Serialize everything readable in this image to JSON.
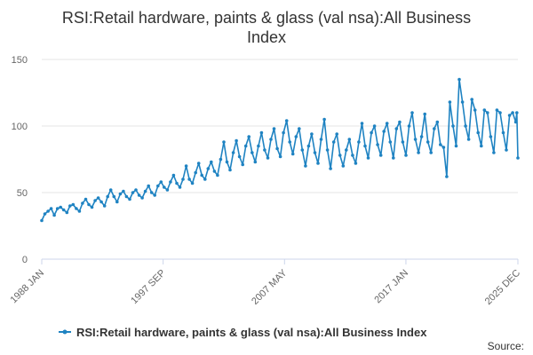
{
  "colors": {
    "series": "#1f83c2",
    "grid": "#e6e6e6",
    "text": "#333333",
    "tick_text": "#666666"
  },
  "chart_data": {
    "type": "line",
    "title": "RSI:Retail hardware, paints & glass (val nsa):All Business Index",
    "xlabel": "",
    "ylabel": "",
    "ylim": [
      0,
      150
    ],
    "yticks": [
      0,
      50,
      100,
      150
    ],
    "x_range": [
      "1988 JAN",
      "2025 DEC"
    ],
    "xtick_labels": [
      "1988 JAN",
      "1997 SEP",
      "2007 MAY",
      "2017 JAN",
      "2025 DEC"
    ],
    "grid": true,
    "legend_position": "bottom",
    "frequency": "monthly",
    "series": [
      {
        "name": "RSI:Retail hardware, paints & glass (val nsa):All Business Index",
        "points": [
          [
            "1988 JAN",
            29
          ],
          [
            "1988 APR",
            34
          ],
          [
            "1988 JUL",
            36
          ],
          [
            "1988 OCT",
            38
          ],
          [
            "1989 JAN",
            33
          ],
          [
            "1989 APR",
            38
          ],
          [
            "1989 JUL",
            39
          ],
          [
            "1989 OCT",
            37
          ],
          [
            "1990 JAN",
            35
          ],
          [
            "1990 APR",
            40
          ],
          [
            "1990 JUL",
            41
          ],
          [
            "1990 OCT",
            38
          ],
          [
            "1991 JAN",
            36
          ],
          [
            "1991 APR",
            42
          ],
          [
            "1991 JUL",
            45
          ],
          [
            "1991 OCT",
            41
          ],
          [
            "1992 JAN",
            39
          ],
          [
            "1992 APR",
            44
          ],
          [
            "1992 JUL",
            46
          ],
          [
            "1992 OCT",
            43
          ],
          [
            "1993 JAN",
            40
          ],
          [
            "1993 APR",
            47
          ],
          [
            "1993 JUL",
            52
          ],
          [
            "1993 OCT",
            47
          ],
          [
            "1994 JAN",
            43
          ],
          [
            "1994 APR",
            49
          ],
          [
            "1994 JUL",
            51
          ],
          [
            "1994 OCT",
            47
          ],
          [
            "1995 JAN",
            45
          ],
          [
            "1995 APR",
            50
          ],
          [
            "1995 JUL",
            52
          ],
          [
            "1995 OCT",
            48
          ],
          [
            "1996 JAN",
            46
          ],
          [
            "1996 APR",
            51
          ],
          [
            "1996 JUL",
            55
          ],
          [
            "1996 OCT",
            50
          ],
          [
            "1997 JAN",
            48
          ],
          [
            "1997 APR",
            55
          ],
          [
            "1997 JUL",
            58
          ],
          [
            "1997 OCT",
            54
          ],
          [
            "1998 JAN",
            52
          ],
          [
            "1998 APR",
            58
          ],
          [
            "1998 JUL",
            63
          ],
          [
            "1998 OCT",
            57
          ],
          [
            "1999 JAN",
            54
          ],
          [
            "1999 APR",
            60
          ],
          [
            "1999 JUL",
            70
          ],
          [
            "1999 OCT",
            60
          ],
          [
            "2000 JAN",
            57
          ],
          [
            "2000 APR",
            65
          ],
          [
            "2000 JUL",
            72
          ],
          [
            "2000 OCT",
            63
          ],
          [
            "2001 JAN",
            60
          ],
          [
            "2001 APR",
            68
          ],
          [
            "2001 JUL",
            73
          ],
          [
            "2001 OCT",
            66
          ],
          [
            "2002 JAN",
            63
          ],
          [
            "2002 APR",
            75
          ],
          [
            "2002 JUL",
            88
          ],
          [
            "2002 OCT",
            73
          ],
          [
            "2003 JAN",
            67
          ],
          [
            "2003 APR",
            80
          ],
          [
            "2003 JUL",
            89
          ],
          [
            "2003 OCT",
            77
          ],
          [
            "2004 JAN",
            71
          ],
          [
            "2004 APR",
            85
          ],
          [
            "2004 JUL",
            92
          ],
          [
            "2004 OCT",
            80
          ],
          [
            "2005 JAN",
            73
          ],
          [
            "2005 APR",
            85
          ],
          [
            "2005 JUL",
            95
          ],
          [
            "2005 OCT",
            82
          ],
          [
            "2006 JAN",
            76
          ],
          [
            "2006 APR",
            90
          ],
          [
            "2006 JUL",
            98
          ],
          [
            "2006 OCT",
            83
          ],
          [
            "2007 JAN",
            77
          ],
          [
            "2007 APR",
            95
          ],
          [
            "2007 JUL",
            104
          ],
          [
            "2007 OCT",
            88
          ],
          [
            "2008 JAN",
            79
          ],
          [
            "2008 APR",
            92
          ],
          [
            "2008 JUL",
            98
          ],
          [
            "2008 OCT",
            82
          ],
          [
            "2009 JAN",
            70
          ],
          [
            "2009 APR",
            85
          ],
          [
            "2009 JUL",
            94
          ],
          [
            "2009 OCT",
            80
          ],
          [
            "2010 JAN",
            72
          ],
          [
            "2010 APR",
            90
          ],
          [
            "2010 JUL",
            105
          ],
          [
            "2010 OCT",
            82
          ],
          [
            "2011 JAN",
            68
          ],
          [
            "2011 APR",
            88
          ],
          [
            "2011 JUL",
            94
          ],
          [
            "2011 OCT",
            78
          ],
          [
            "2012 JAN",
            70
          ],
          [
            "2012 APR",
            82
          ],
          [
            "2012 JUL",
            90
          ],
          [
            "2012 OCT",
            78
          ],
          [
            "2013 JAN",
            72
          ],
          [
            "2013 APR",
            88
          ],
          [
            "2013 JUL",
            102
          ],
          [
            "2013 OCT",
            85
          ],
          [
            "2014 JAN",
            76
          ],
          [
            "2014 APR",
            95
          ],
          [
            "2014 JUL",
            100
          ],
          [
            "2014 OCT",
            86
          ],
          [
            "2015 JAN",
            78
          ],
          [
            "2015 APR",
            96
          ],
          [
            "2015 JUL",
            102
          ],
          [
            "2015 OCT",
            88
          ],
          [
            "2016 JAN",
            76
          ],
          [
            "2016 APR",
            98
          ],
          [
            "2016 JUL",
            103
          ],
          [
            "2016 OCT",
            88
          ],
          [
            "2017 JAN",
            78
          ],
          [
            "2017 APR",
            100
          ],
          [
            "2017 JUL",
            110
          ],
          [
            "2017 OCT",
            90
          ],
          [
            "2018 JAN",
            80
          ],
          [
            "2018 APR",
            92
          ],
          [
            "2018 JUL",
            109
          ],
          [
            "2018 OCT",
            88
          ],
          [
            "2019 JAN",
            80
          ],
          [
            "2019 APR",
            98
          ],
          [
            "2019 JUL",
            103
          ],
          [
            "2019 OCT",
            86
          ],
          [
            "2020 JAN",
            84
          ],
          [
            "2020 APR",
            62
          ],
          [
            "2020 JUL",
            118
          ],
          [
            "2020 OCT",
            100
          ],
          [
            "2021 JAN",
            85
          ],
          [
            "2021 APR",
            135
          ],
          [
            "2021 JUL",
            118
          ],
          [
            "2021 OCT",
            100
          ],
          [
            "2022 JAN",
            90
          ],
          [
            "2022 APR",
            120
          ],
          [
            "2022 JUL",
            112
          ],
          [
            "2022 OCT",
            95
          ],
          [
            "2023 JAN",
            85
          ],
          [
            "2023 APR",
            112
          ],
          [
            "2023 JUL",
            110
          ],
          [
            "2023 OCT",
            92
          ],
          [
            "2024 JAN",
            80
          ],
          [
            "2024 APR",
            112
          ],
          [
            "2024 JUL",
            110
          ],
          [
            "2024 OCT",
            95
          ],
          [
            "2025 JAN",
            82
          ],
          [
            "2025 APR",
            108
          ],
          [
            "2025 JUL",
            110
          ],
          [
            "2025 OCT",
            103
          ],
          [
            "2025 NOV",
            110
          ],
          [
            "2025 DEC",
            76
          ]
        ]
      }
    ]
  },
  "source_label": "Source:"
}
